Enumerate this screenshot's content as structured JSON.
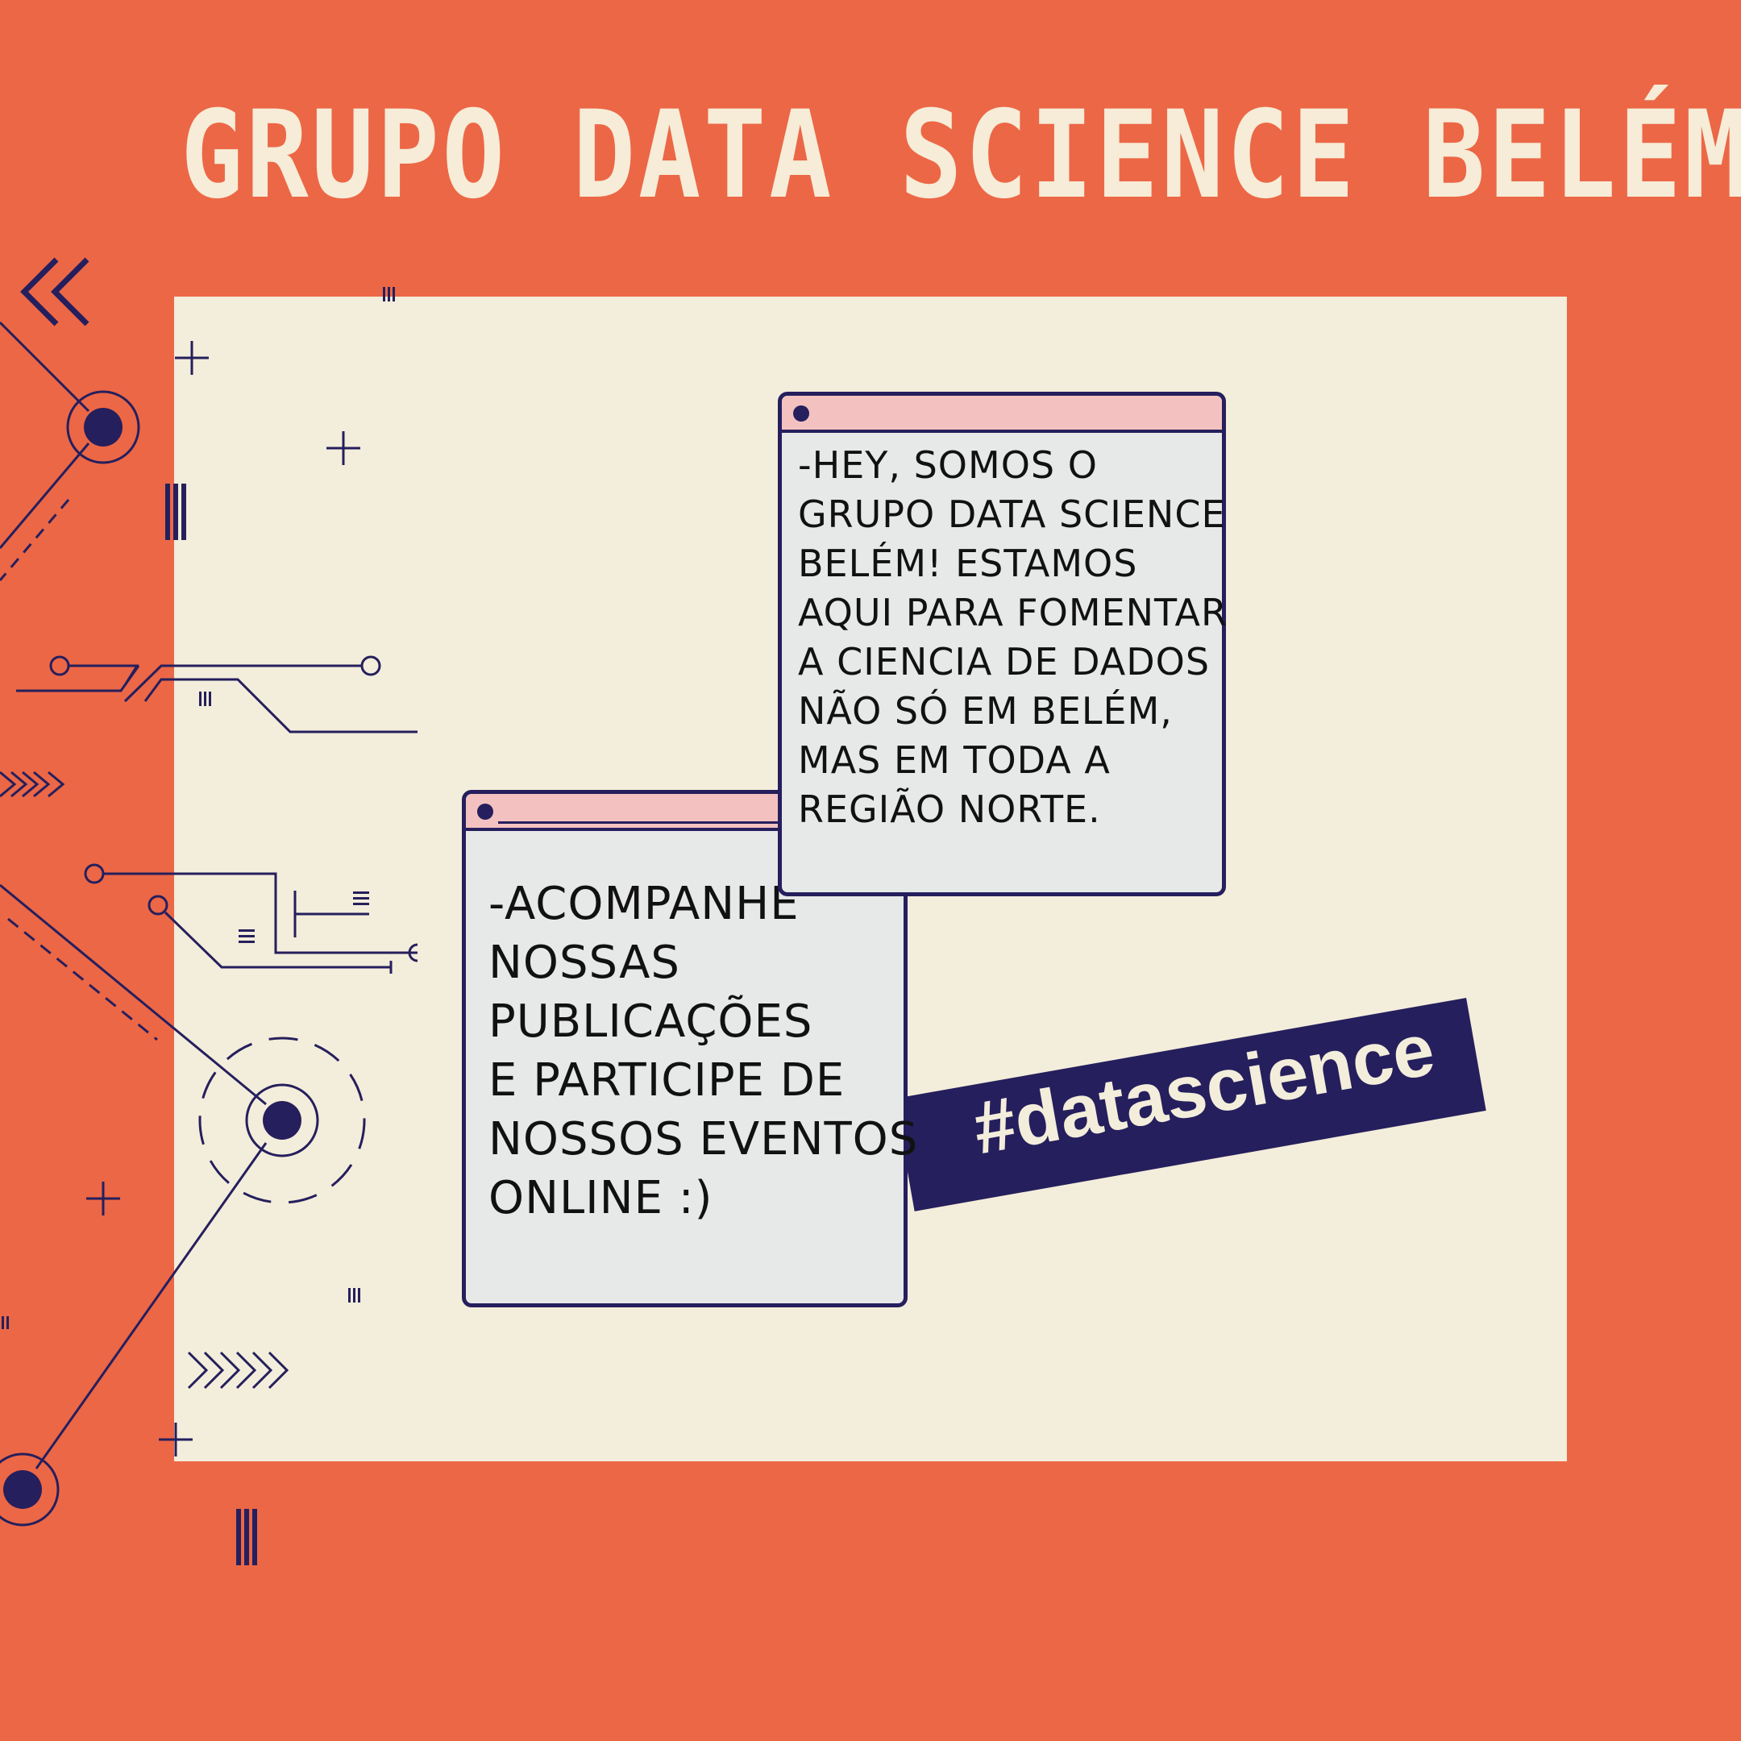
{
  "header": {
    "title": "GRUPO DATA SCIENCE BELÉM"
  },
  "messages": {
    "top": "-HEY, SOMOS O\nGRUPO DATA SCIENCE\nBELÉM! ESTAMOS\nAQUI PARA FOMENTAR\nA CIENCIA DE DADOS\nNÃO SÓ EM BELÉM,\nMAS EM TODA A\nREGIÃO NORTE.",
    "bottom": "-ACOMPANHE\nNOSSAS\nPUBLICAÇÕES\nE PARTICIPE DE\nNOSSOS EVENTOS\nONLINE :)"
  },
  "banner": {
    "hashtag": "#datascience"
  },
  "colors": {
    "background": "#ec6746",
    "panel": "#f3eddb",
    "navy": "#251f5d",
    "window_bar": "#f3c2c0",
    "window_body": "#e7e8e8",
    "title_text": "#f6ecd7"
  }
}
